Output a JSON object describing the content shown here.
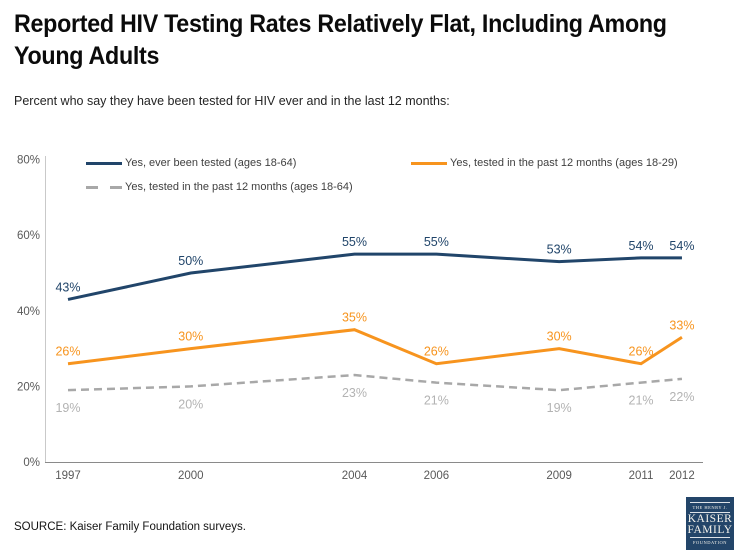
{
  "header": {
    "title_line1": "Reported HIV Testing Rates Relatively Flat, Including Among",
    "title_line2": "Young Adults",
    "subtitle": "Percent who say they have been tested for HIV ever and in the last 12 months:"
  },
  "chart_data": {
    "type": "line",
    "title": "Reported HIV Testing Rates Relatively Flat, Including Among Young Adults",
    "subtitle": "Percent who say they have been tested for HIV ever and in the last 12 months:",
    "x": [
      1997,
      2000,
      2004,
      2006,
      2009,
      2011,
      2012
    ],
    "xlim": [
      1997,
      2012
    ],
    "ylim": [
      0,
      80
    ],
    "yticks": [
      0,
      20,
      40,
      60,
      80
    ],
    "ytick_labels": [
      "0%",
      "20%",
      "40%",
      "60%",
      "80%"
    ],
    "grid": false,
    "legend_position": "top-left, two columns",
    "series": [
      {
        "name": "Yes, ever been tested (ages 18-64)",
        "values": [
          43,
          50,
          55,
          55,
          53,
          54,
          54
        ],
        "data_labels": [
          "43%",
          "50%",
          "55%",
          "55%",
          "53%",
          "54%",
          "54%"
        ],
        "color": "#21456A",
        "label_color": "#21456A",
        "line_style": "solid",
        "label_position": "above"
      },
      {
        "name": "Yes, tested in the past 12 months (ages 18-29)",
        "values": [
          26,
          30,
          35,
          26,
          30,
          26,
          33
        ],
        "data_labels": [
          "26%",
          "30%",
          "35%",
          "26%",
          "30%",
          "26%",
          "33%"
        ],
        "color": "#F7941E",
        "label_color": "#F7941E",
        "line_style": "solid",
        "label_position": "above"
      },
      {
        "name": "Yes, tested in the past 12 months (ages 18-64)",
        "values": [
          19,
          20,
          23,
          21,
          19,
          21,
          22
        ],
        "data_labels": [
          "19%",
          "20%",
          "23%",
          "21%",
          "19%",
          "21%",
          "22%"
        ],
        "color": "#A8A8A8",
        "label_color": "#B3B3B3",
        "line_style": "dashed",
        "label_position": "below"
      }
    ],
    "axis_colors": {
      "y_axis_line": "#C9C9C9",
      "x_axis_line": "#8A8A8A",
      "tick_text": "#595959"
    }
  },
  "footer": {
    "source": "SOURCE: Kaiser Family Foundation surveys.",
    "logo": {
      "line1": "THE HENRY J.",
      "line2": "KAISER",
      "line3": "FAMILY",
      "line4": "FOUNDATION",
      "bg_color": "#234569"
    }
  }
}
